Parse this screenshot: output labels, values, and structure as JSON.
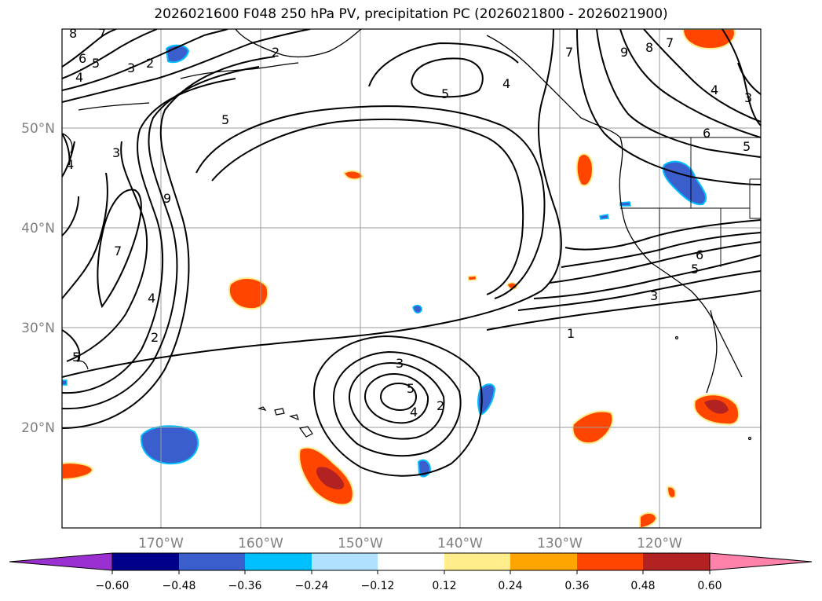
{
  "title": "2026021600 F048 250 hPa PV, precipitation PC (2026021800 - 2026021900)",
  "lat_labels": [
    "50°N",
    "40°N",
    "30°N",
    "20°N"
  ],
  "lon_labels": [
    "170°W",
    "160°W",
    "150°W",
    "140°W",
    "130°W",
    "120°W"
  ],
  "colorbar": {
    "ticks": [
      "−0.60",
      "−0.48",
      "−0.36",
      "−0.24",
      "−0.12",
      "0.12",
      "0.24",
      "0.36",
      "0.48",
      "0.60"
    ],
    "colors": [
      "#9b30d0",
      "#00008b",
      "#3a5fcd",
      "#00bfff",
      "#b0e2ff",
      "#ffffff",
      "#ffec8b",
      "#ffa500",
      "#ff4500",
      "#b22222",
      "#ff82ab"
    ]
  },
  "contour_labels": [
    "8",
    "7",
    "6",
    "5",
    "4",
    "3",
    "2",
    "5",
    "4",
    "3",
    "2",
    "5",
    "4",
    "7",
    "9",
    "8",
    "7",
    "4",
    "3",
    "6",
    "5",
    "1",
    "3",
    "6",
    "9",
    "7",
    "4",
    "2",
    "5",
    "3",
    "5",
    "4",
    "2",
    "1",
    "3",
    "5",
    "6"
  ],
  "colors": {
    "negative_blue": "#3a5fcd",
    "negative_cyan": "#00bfff",
    "positive_orange": "#ff4500",
    "positive_red": "#b22222",
    "positive_yellow": "#ffec8b"
  }
}
